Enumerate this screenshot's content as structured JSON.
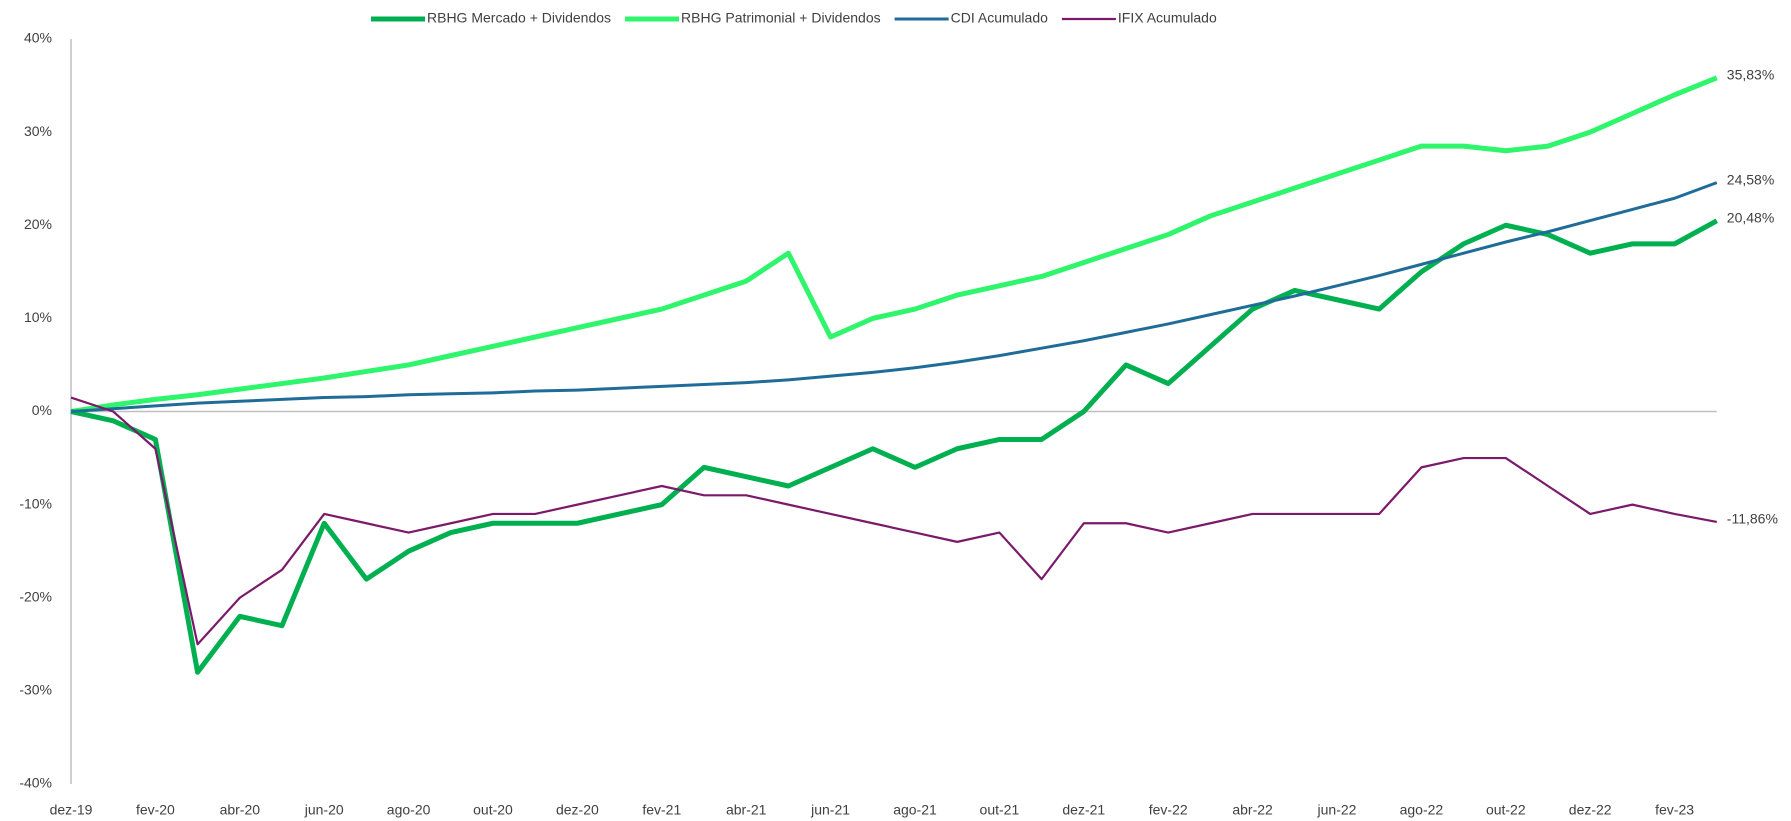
{
  "chart_data": {
    "type": "line",
    "categories": [
      "dez-19",
      null,
      "fev-20",
      null,
      "abr-20",
      null,
      "jun-20",
      null,
      "ago-20",
      null,
      "out-20",
      null,
      "dez-20",
      null,
      "fev-21",
      null,
      "abr-21",
      null,
      "jun-21",
      null,
      "ago-21",
      null,
      "out-21",
      null,
      "dez-21",
      null,
      "fev-22",
      null,
      "abr-22",
      null,
      "jun-22",
      null,
      "ago-22",
      null,
      "out-22",
      null,
      "dez-22",
      null,
      "fev-23",
      null
    ],
    "ylim": [
      -40,
      40
    ],
    "yticks": [
      {
        "value": -40,
        "label": "-40%"
      },
      {
        "value": -30,
        "label": "-30%"
      },
      {
        "value": -20,
        "label": "-20%"
      },
      {
        "value": -10,
        "label": "-10%"
      },
      {
        "value": 0,
        "label": "0%"
      },
      {
        "value": 10,
        "label": "10%"
      },
      {
        "value": 20,
        "label": "20%"
      },
      {
        "value": 30,
        "label": "30%"
      },
      {
        "value": 40,
        "label": "40%"
      }
    ],
    "legend": "top",
    "series": [
      {
        "name": "RBHG Mercado + Dividendos",
        "color": "#00b050",
        "values": [
          0,
          -1,
          -3,
          -28,
          -22,
          -23,
          -12,
          -18,
          -15,
          -13,
          -12,
          -12,
          -12,
          -11,
          -10,
          -6,
          -7,
          -8,
          -6,
          -4,
          -6,
          -4,
          -3,
          -3,
          0,
          5,
          3,
          7,
          11,
          13,
          12,
          11,
          15,
          18,
          20,
          19,
          17,
          18,
          18,
          20.48
        ],
        "value_labels": [
          null,
          null,
          null,
          null,
          null,
          null,
          null,
          null,
          null,
          null,
          null,
          null,
          null,
          null,
          null,
          null,
          null,
          null,
          null,
          null,
          null,
          null,
          null,
          null,
          null,
          null,
          null,
          null,
          null,
          null,
          null,
          null,
          null,
          null,
          null,
          null,
          null,
          null,
          null,
          "20,48%"
        ]
      },
      {
        "name": "RBHG Patrimonial + Dividendos",
        "color": "#2ef56b",
        "values": [
          0,
          0.7,
          1.3,
          1.8,
          2.4,
          3.0,
          3.6,
          4.3,
          5.0,
          6.0,
          7.0,
          8.0,
          9.0,
          10,
          11,
          12.5,
          14,
          17,
          8,
          10,
          11,
          12.5,
          13.5,
          14.5,
          16,
          17.5,
          19,
          21,
          22.5,
          24,
          25.5,
          27,
          28.5,
          28.5,
          28,
          28.5,
          30,
          32,
          34,
          35.83
        ],
        "value_labels": [
          null,
          null,
          null,
          null,
          null,
          null,
          null,
          null,
          null,
          null,
          null,
          null,
          null,
          null,
          null,
          null,
          null,
          null,
          null,
          null,
          null,
          null,
          null,
          null,
          null,
          null,
          null,
          null,
          null,
          null,
          null,
          null,
          null,
          null,
          null,
          null,
          null,
          null,
          null,
          "35,83%"
        ]
      },
      {
        "name": "CDI Acumulado",
        "color": "#1f6c98",
        "values": [
          0,
          0.3,
          0.6,
          0.9,
          1.1,
          1.3,
          1.5,
          1.6,
          1.8,
          1.9,
          2.0,
          2.2,
          2.3,
          2.5,
          2.7,
          2.9,
          3.1,
          3.4,
          3.8,
          4.2,
          4.7,
          5.3,
          6.0,
          6.8,
          7.6,
          8.5,
          9.4,
          10.4,
          11.4,
          12.4,
          13.5,
          14.6,
          15.8,
          17.0,
          18.2,
          19.3,
          20.5,
          21.7,
          22.9,
          24.58
        ],
        "value_labels": [
          null,
          null,
          null,
          null,
          null,
          null,
          null,
          null,
          null,
          null,
          null,
          null,
          null,
          null,
          null,
          null,
          null,
          null,
          null,
          null,
          null,
          null,
          null,
          null,
          null,
          null,
          null,
          null,
          null,
          null,
          null,
          null,
          null,
          null,
          null,
          null,
          null,
          null,
          null,
          "24,58%"
        ]
      },
      {
        "name": "IFIX Acumulado",
        "color": "#7b1a6b",
        "values": [
          1.5,
          0,
          -4,
          -25,
          -20,
          -17,
          -11,
          -12,
          -13,
          -12,
          -11,
          -11,
          -10,
          -9,
          -8,
          -9,
          -9,
          -10,
          -11,
          -12,
          -13,
          -14,
          -13,
          -18,
          -12,
          -12,
          -13,
          -12,
          -11,
          -11,
          -11,
          -11,
          -6,
          -5,
          -5,
          -8,
          -11,
          -10,
          -11,
          -11.86
        ],
        "value_labels": [
          null,
          null,
          null,
          null,
          null,
          null,
          null,
          null,
          null,
          null,
          null,
          null,
          null,
          null,
          null,
          null,
          null,
          null,
          null,
          null,
          null,
          null,
          null,
          null,
          null,
          null,
          null,
          null,
          null,
          null,
          null,
          null,
          null,
          null,
          null,
          null,
          null,
          null,
          null,
          "-11,86%"
        ]
      }
    ]
  }
}
